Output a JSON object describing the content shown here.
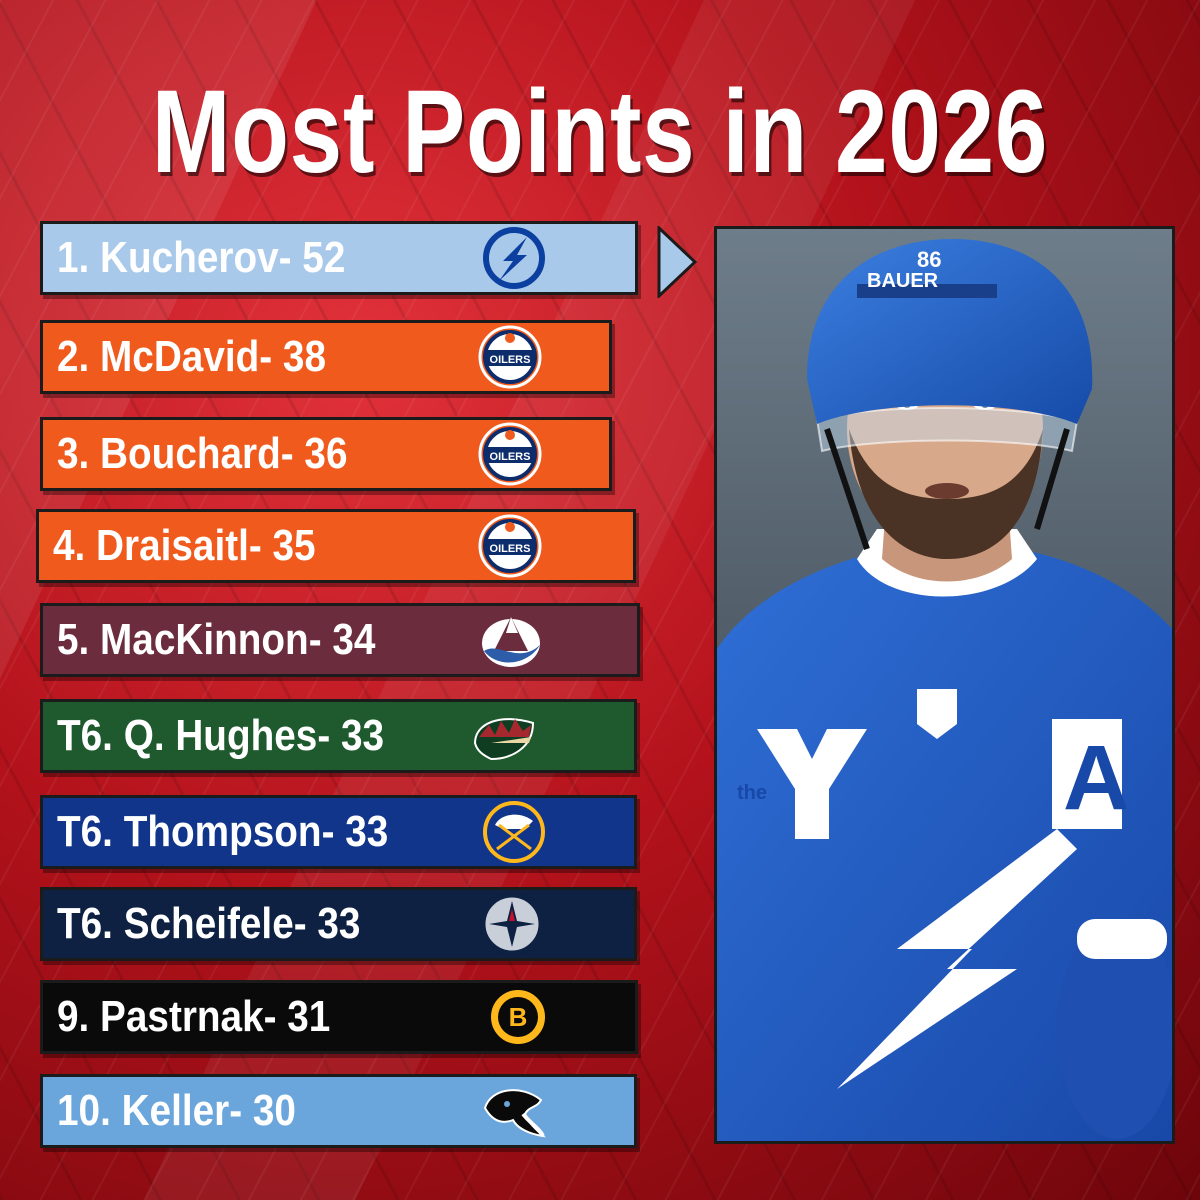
{
  "title": "Most Points in 2026",
  "leaders": [
    {
      "label": "1. Kucherov- 52",
      "team_logo": "lightning-logo-icon",
      "bg": "#a9c9ea",
      "text": "#ffffff"
    },
    {
      "label": "2. McDavid- 38",
      "team_logo": "oilers-logo-icon",
      "bg": "#f05a1d",
      "text": "#ffffff"
    },
    {
      "label": "3. Bouchard- 36",
      "team_logo": "oilers-logo-icon",
      "bg": "#f05a1d",
      "text": "#ffffff"
    },
    {
      "label": "4. Draisaitl- 35",
      "team_logo": "oilers-logo-icon",
      "bg": "#f05a1d",
      "text": "#ffffff"
    },
    {
      "label": "5. MacKinnon- 34",
      "team_logo": "avalanche-logo-icon",
      "bg": "#6b2c3e",
      "text": "#ffffff"
    },
    {
      "label": "T6. Q. Hughes- 33",
      "team_logo": "wild-logo-icon",
      "bg": "#1f5a2e",
      "text": "#ffffff"
    },
    {
      "label": "T6. Thompson- 33",
      "team_logo": "sabres-logo-icon",
      "bg": "#12358c",
      "text": "#ffffff"
    },
    {
      "label": "T6. Scheifele- 33",
      "team_logo": "jets-logo-icon",
      "bg": "#0e2142",
      "text": "#ffffff"
    },
    {
      "label": "9. Pastrnak- 31",
      "team_logo": "bruins-logo-icon",
      "bg": "#0a0a0a",
      "text": "#ffffff"
    },
    {
      "label": "10. Keller- 30",
      "team_logo": "mammoth-logo-icon",
      "bg": "#6aa6dc",
      "text": "#ffffff"
    }
  ],
  "photo": {
    "subject": "player-photo",
    "jersey_number": "86",
    "helmet_text": "BAUER",
    "patch_text": "the",
    "captain_letter": "A"
  }
}
